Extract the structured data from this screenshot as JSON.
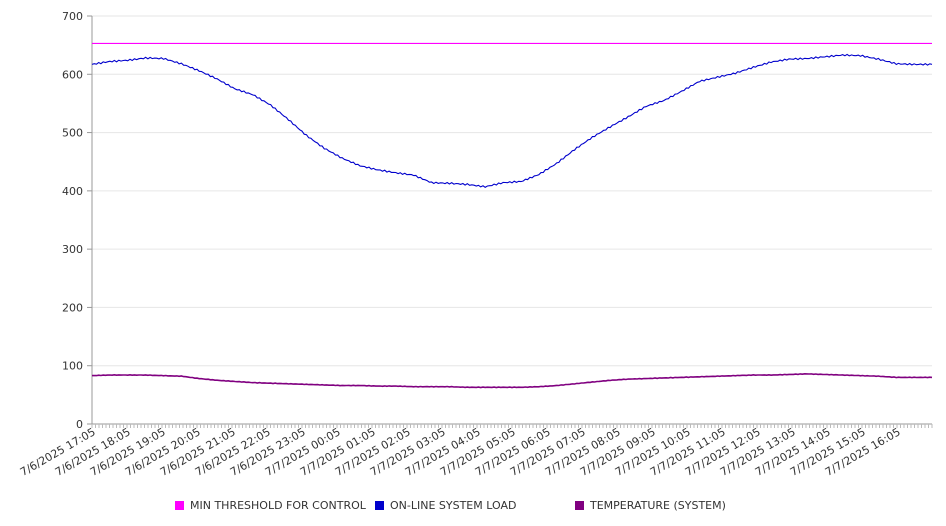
{
  "chart_data": {
    "type": "line",
    "title": "",
    "xlabel": "",
    "ylabel": "",
    "ylim": [
      0,
      700
    ],
    "yticks": [
      0,
      100,
      200,
      300,
      400,
      500,
      600,
      700
    ],
    "grid": true,
    "legend_position": "bottom",
    "x_tick_labels": [
      "7/6/2025 17:05",
      "7/6/2025 18:05",
      "7/6/2025 19:05",
      "7/6/2025 20:05",
      "7/6/2025 21:05",
      "7/6/2025 22:05",
      "7/6/2025 23:05",
      "7/7/2025 00:05",
      "7/7/2025 01:05",
      "7/7/2025 02:05",
      "7/7/2025 03:05",
      "7/7/2025 04:05",
      "7/7/2025 05:05",
      "7/7/2025 06:05",
      "7/7/2025 07:05",
      "7/7/2025 08:05",
      "7/7/2025 09:05",
      "7/7/2025 10:05",
      "7/7/2025 11:05",
      "7/7/2025 12:05",
      "7/7/2025 13:05",
      "7/7/2025 14:05",
      "7/7/2025 15:05",
      "7/7/2025 16:05"
    ],
    "x": [
      "7/6/2025 17:05",
      "7/6/2025 17:35",
      "7/6/2025 18:05",
      "7/6/2025 18:35",
      "7/6/2025 19:05",
      "7/6/2025 19:35",
      "7/6/2025 20:05",
      "7/6/2025 20:35",
      "7/6/2025 21:05",
      "7/6/2025 21:35",
      "7/6/2025 22:05",
      "7/6/2025 22:35",
      "7/6/2025 23:05",
      "7/6/2025 23:35",
      "7/7/2025 00:05",
      "7/7/2025 00:35",
      "7/7/2025 01:05",
      "7/7/2025 01:35",
      "7/7/2025 02:05",
      "7/7/2025 02:35",
      "7/7/2025 03:05",
      "7/7/2025 03:35",
      "7/7/2025 04:05",
      "7/7/2025 04:35",
      "7/7/2025 05:05",
      "7/7/2025 05:35",
      "7/7/2025 06:05",
      "7/7/2025 06:35",
      "7/7/2025 07:05",
      "7/7/2025 07:35",
      "7/7/2025 08:05",
      "7/7/2025 08:35",
      "7/7/2025 09:05",
      "7/7/2025 09:35",
      "7/7/2025 10:05",
      "7/7/2025 10:35",
      "7/7/2025 11:05",
      "7/7/2025 11:35",
      "7/7/2025 12:05",
      "7/7/2025 12:35",
      "7/7/2025 13:05",
      "7/7/2025 13:35",
      "7/7/2025 14:05",
      "7/7/2025 14:35",
      "7/7/2025 15:05",
      "7/7/2025 15:35",
      "7/7/2025 16:05",
      "7/7/2025 16:35"
    ],
    "series": [
      {
        "name": "MIN THRESHOLD FOR CONTROL",
        "color": "#ff00ff",
        "values": [
          653,
          653,
          653,
          653,
          653,
          653,
          653,
          653,
          653,
          653,
          653,
          653,
          653,
          653,
          653,
          653,
          653,
          653,
          653,
          653,
          653,
          653,
          653,
          653,
          653,
          653,
          653,
          653,
          653,
          653,
          653,
          653,
          653,
          653,
          653,
          653,
          653,
          653,
          653,
          653,
          653,
          653,
          653,
          653,
          653,
          653,
          653,
          653
        ]
      },
      {
        "name": "ON-LINE SYSTEM LOAD",
        "color": "#0000cc",
        "values": [
          617,
          622,
          624,
          628,
          627,
          618,
          606,
          592,
          575,
          565,
          547,
          522,
          495,
          473,
          456,
          443,
          436,
          431,
          427,
          414,
          413,
          411,
          407,
          414,
          416,
          428,
          447,
          471,
          492,
          510,
          527,
          545,
          555,
          571,
          588,
          595,
          602,
          612,
          621,
          626,
          627,
          630,
          633,
          632,
          626,
          618,
          617,
          617
        ]
      },
      {
        "name": "TEMPERATURE (SYSTEM)",
        "color": "#800080",
        "values": [
          83,
          84,
          84,
          84,
          83,
          82,
          78,
          75,
          73,
          71,
          70,
          69,
          68,
          67,
          66,
          66,
          65,
          65,
          64,
          64,
          64,
          63,
          63,
          63,
          63,
          64,
          66,
          69,
          72,
          75,
          77,
          78,
          79,
          80,
          81,
          82,
          83,
          84,
          84,
          85,
          86,
          85,
          84,
          83,
          82,
          80,
          80,
          80
        ]
      }
    ]
  }
}
